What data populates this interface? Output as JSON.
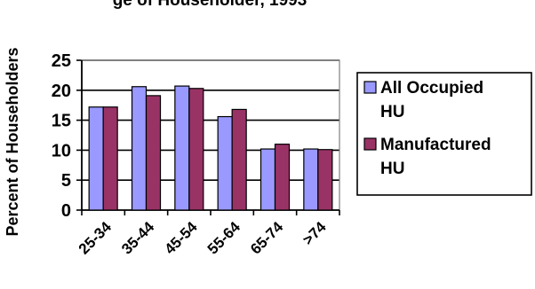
{
  "chart_data": {
    "type": "bar",
    "title": "ge of Householder, 1993",
    "ylabel": "Percent of Householders",
    "xlabel": "",
    "categories": [
      "25-34",
      "35-44",
      "45-54",
      "55-64",
      "65-74",
      ">74"
    ],
    "series": [
      {
        "name": "All Occupied HU",
        "name_lines": [
          "All Occupied",
          "HU"
        ],
        "color": "#9999ff",
        "values": [
          17.2,
          20.6,
          20.7,
          15.6,
          10.2,
          10.2
        ]
      },
      {
        "name": "Manufactured HU",
        "name_lines": [
          "Manufactured",
          "HU"
        ],
        "color": "#993366",
        "values": [
          17.2,
          19.1,
          20.3,
          16.8,
          11.0,
          10.1
        ]
      }
    ],
    "ylim": [
      0,
      25
    ],
    "yticks": [
      0,
      5,
      10,
      15,
      20,
      25
    ],
    "grid": true,
    "legend_position": "right"
  }
}
